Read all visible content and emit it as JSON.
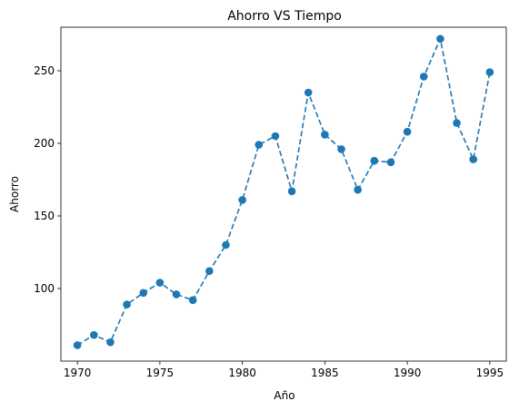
{
  "chart_data": {
    "type": "line",
    "title": "Ahorro VS Tiempo",
    "xlabel": "Año",
    "ylabel": "Ahorro",
    "xlim": [
      1969,
      1996
    ],
    "ylim": [
      50,
      280
    ],
    "xticks": [
      1970,
      1975,
      1980,
      1985,
      1990,
      1995
    ],
    "yticks": [
      100,
      150,
      200,
      250
    ],
    "grid": false,
    "line_style": "dashed",
    "marker": "circle",
    "color": "#1f77b4",
    "series": [
      {
        "x": [
          1970,
          1971,
          1972,
          1973,
          1974,
          1975,
          1976,
          1977,
          1978,
          1979,
          1980,
          1981,
          1982,
          1983,
          1984,
          1985,
          1986,
          1987,
          1988,
          1989,
          1990,
          1991,
          1992,
          1993,
          1994,
          1995
        ],
        "values": [
          61,
          68,
          63,
          89,
          97,
          104,
          96,
          92,
          112,
          130,
          161,
          199,
          205,
          167,
          235,
          206,
          196,
          168,
          188,
          187,
          208,
          246,
          272,
          214,
          189,
          249
        ]
      }
    ]
  }
}
